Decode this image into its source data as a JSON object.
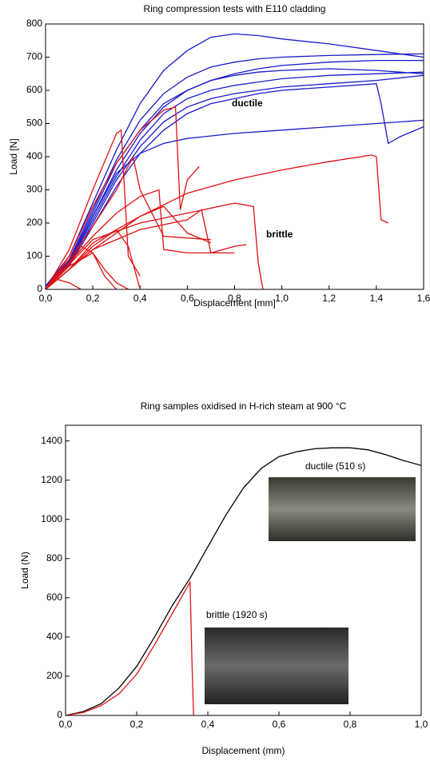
{
  "chart_data": [
    {
      "type": "line",
      "title": "Ring compression tests with E110 cladding",
      "x_label": "Displacement  [mm]",
      "y_label": "Load [N]",
      "xlim": [
        0,
        1.6
      ],
      "ylim": [
        0,
        800
      ],
      "xticks": [
        {
          "value": 0,
          "label": "0,0"
        },
        {
          "value": 0.2,
          "label": "0,2"
        },
        {
          "value": 0.4,
          "label": "0,4"
        },
        {
          "value": 0.6,
          "label": "0,6"
        },
        {
          "value": 0.8,
          "label": "0,8"
        },
        {
          "value": 1.0,
          "label": "1,0"
        },
        {
          "value": 1.2,
          "label": "1,2"
        },
        {
          "value": 1.4,
          "label": "1,4"
        },
        {
          "value": 1.6,
          "label": "1,6"
        }
      ],
      "yticks": [
        0,
        100,
        200,
        300,
        400,
        500,
        600,
        700,
        800
      ],
      "annotations": [
        {
          "text": "ductile",
          "color": "#1a1acc"
        },
        {
          "text": "brittle",
          "color": "#e01010"
        }
      ],
      "series": [
        {
          "color": "#1a1acc",
          "x": [
            0,
            0.1,
            0.2,
            0.3,
            0.4,
            0.5,
            0.6,
            0.7,
            0.8,
            0.9,
            1.0,
            1.2,
            1.4,
            1.6
          ],
          "values": [
            10,
            100,
            260,
            420,
            560,
            660,
            720,
            760,
            770,
            765,
            755,
            740,
            720,
            700
          ]
        },
        {
          "color": "#1a1acc",
          "x": [
            0,
            0.1,
            0.2,
            0.3,
            0.4,
            0.5,
            0.6,
            0.7,
            0.8,
            0.9,
            1.0,
            1.2,
            1.4,
            1.6
          ],
          "values": [
            10,
            90,
            240,
            390,
            510,
            590,
            640,
            670,
            685,
            695,
            700,
            705,
            708,
            710
          ]
        },
        {
          "color": "#1a1acc",
          "x": [
            0,
            0.1,
            0.2,
            0.3,
            0.4,
            0.5,
            0.6,
            0.7,
            0.8,
            0.9,
            1.0,
            1.2,
            1.4,
            1.6
          ],
          "values": [
            10,
            80,
            220,
            360,
            470,
            550,
            600,
            630,
            650,
            665,
            675,
            685,
            690,
            690
          ]
        },
        {
          "color": "#1a1acc",
          "x": [
            0,
            0.1,
            0.2,
            0.3,
            0.4,
            0.5,
            0.6,
            0.7,
            0.8,
            0.9,
            1.0,
            1.2,
            1.4,
            1.6
          ],
          "values": [
            10,
            80,
            210,
            340,
            450,
            530,
            575,
            600,
            615,
            625,
            635,
            645,
            650,
            655
          ]
        },
        {
          "color": "#1a1acc",
          "x": [
            0,
            0.1,
            0.2,
            0.3,
            0.4,
            0.5,
            0.6,
            0.7,
            0.8,
            0.9,
            1.0,
            1.2,
            1.4,
            1.6
          ],
          "values": [
            10,
            75,
            200,
            330,
            430,
            505,
            550,
            575,
            590,
            600,
            610,
            620,
            630,
            645
          ]
        },
        {
          "color": "#1a1acc",
          "x": [
            0,
            0.1,
            0.2,
            0.3,
            0.4,
            0.5,
            0.6,
            0.7,
            0.8,
            0.9,
            1.0,
            1.2,
            1.4,
            1.42,
            1.45,
            1.5,
            1.6
          ],
          "values": [
            10,
            70,
            190,
            310,
            410,
            480,
            530,
            560,
            575,
            590,
            600,
            610,
            620,
            560,
            440,
            460,
            490
          ]
        },
        {
          "color": "#1a1acc",
          "x": [
            0,
            0.1,
            0.2,
            0.3,
            0.4,
            0.5,
            0.6,
            0.8,
            1.0,
            1.2,
            1.4,
            1.6
          ],
          "values": [
            10,
            80,
            220,
            350,
            410,
            440,
            455,
            470,
            480,
            490,
            500,
            510
          ]
        },
        {
          "color": "#1a1acc",
          "x": [
            0,
            0.1,
            0.2,
            0.3,
            0.4,
            0.5,
            0.6,
            0.7,
            0.8,
            0.9,
            1.0,
            1.2,
            1.4,
            1.6
          ],
          "values": [
            10,
            85,
            230,
            380,
            480,
            560,
            600,
            630,
            645,
            655,
            660,
            665,
            660,
            650
          ]
        },
        {
          "color": "#e01010",
          "x": [
            0,
            0.1,
            0.2,
            0.3,
            0.32,
            0.35,
            0.4
          ],
          "values": [
            0,
            120,
            300,
            470,
            480,
            100,
            40
          ]
        },
        {
          "color": "#e01010",
          "x": [
            0,
            0.1,
            0.2,
            0.3,
            0.4,
            0.5,
            0.55,
            0.57,
            0.6,
            0.65
          ],
          "values": [
            0,
            100,
            250,
            380,
            480,
            540,
            550,
            240,
            330,
            370
          ]
        },
        {
          "color": "#e01010",
          "x": [
            0,
            0.2,
            0.4,
            0.6,
            0.8,
            1.0,
            1.2,
            1.38,
            1.4,
            1.42,
            1.45
          ],
          "values": [
            0,
            120,
            220,
            290,
            330,
            360,
            385,
            405,
            400,
            210,
            200
          ]
        },
        {
          "color": "#e01010",
          "x": [
            0,
            0.2,
            0.4,
            0.6,
            0.8,
            0.88,
            0.9,
            0.92
          ],
          "values": [
            0,
            150,
            200,
            230,
            260,
            250,
            80,
            0
          ]
        },
        {
          "color": "#e01010",
          "x": [
            0,
            0.1,
            0.2,
            0.3,
            0.37,
            0.4,
            0.5,
            0.7
          ],
          "values": [
            0,
            90,
            190,
            300,
            400,
            300,
            160,
            150
          ]
        },
        {
          "color": "#e01010",
          "x": [
            0,
            0.1,
            0.2,
            0.3,
            0.4,
            0.48,
            0.5,
            0.6,
            0.8
          ],
          "values": [
            0,
            80,
            160,
            230,
            280,
            300,
            120,
            110,
            110
          ]
        },
        {
          "color": "#e01010",
          "x": [
            0,
            0.1,
            0.2,
            0.3,
            0.4,
            0.5,
            0.55,
            0.6,
            0.7
          ],
          "values": [
            0,
            60,
            130,
            180,
            220,
            250,
            210,
            170,
            140
          ]
        },
        {
          "color": "#e01010",
          "x": [
            0,
            0.1,
            0.15,
            0.2,
            0.25,
            0.3
          ],
          "values": [
            0,
            80,
            130,
            110,
            40,
            0
          ]
        },
        {
          "color": "#e01010",
          "x": [
            0,
            0.1,
            0.2,
            0.3,
            0.35,
            0.4
          ],
          "values": [
            0,
            60,
            140,
            180,
            130,
            0
          ]
        },
        {
          "color": "#e01010",
          "x": [
            0,
            0.2,
            0.4,
            0.6,
            0.66,
            0.7,
            0.8,
            0.85
          ],
          "values": [
            0,
            120,
            180,
            210,
            240,
            110,
            130,
            135
          ]
        },
        {
          "color": "#e01010",
          "x": [
            0,
            0.1,
            0.2,
            0.25,
            0.3,
            0.35
          ],
          "values": [
            0,
            70,
            110,
            60,
            20,
            0
          ]
        },
        {
          "color": "#e01010",
          "x": [
            0,
            0.05,
            0.1,
            0.15
          ],
          "values": [
            0,
            30,
            20,
            0
          ]
        }
      ]
    },
    {
      "type": "line",
      "title": "Ring samples oxidised in H-rich steam at 900 °C",
      "x_label": "Displacement (mm)",
      "y_label": "Load (N)",
      "xlim": [
        0,
        1
      ],
      "ylim": [
        0,
        1480
      ],
      "xticks": [
        {
          "value": 0,
          "label": "0,0"
        },
        {
          "value": 0.2,
          "label": "0,2"
        },
        {
          "value": 0.4,
          "label": "0,4"
        },
        {
          "value": 0.6,
          "label": "0,6"
        },
        {
          "value": 0.8,
          "label": "0,8"
        },
        {
          "value": 1,
          "label": "1,0"
        }
      ],
      "yticks": [
        0,
        200,
        400,
        600,
        800,
        1000,
        1200,
        1400
      ],
      "annotations": [
        {
          "text": "ductile (510 s)",
          "color": "#000000"
        },
        {
          "text": "brittle (1920 s)",
          "color": "#e01010"
        }
      ],
      "series": [
        {
          "color": "#000000",
          "x": [
            0,
            0.05,
            0.1,
            0.15,
            0.2,
            0.25,
            0.3,
            0.35,
            0.4,
            0.45,
            0.5,
            0.55,
            0.6,
            0.65,
            0.7,
            0.75,
            0.8,
            0.85,
            0.9,
            0.95,
            1.0
          ],
          "values": [
            0,
            20,
            60,
            140,
            250,
            400,
            560,
            700,
            860,
            1020,
            1160,
            1260,
            1320,
            1345,
            1360,
            1365,
            1365,
            1355,
            1330,
            1300,
            1275
          ]
        },
        {
          "color": "#e01010",
          "x": [
            0,
            0.05,
            0.1,
            0.15,
            0.2,
            0.25,
            0.3,
            0.35,
            0.355,
            0.36
          ],
          "values": [
            0,
            15,
            50,
            110,
            210,
            360,
            520,
            680,
            300,
            0
          ]
        }
      ]
    }
  ]
}
